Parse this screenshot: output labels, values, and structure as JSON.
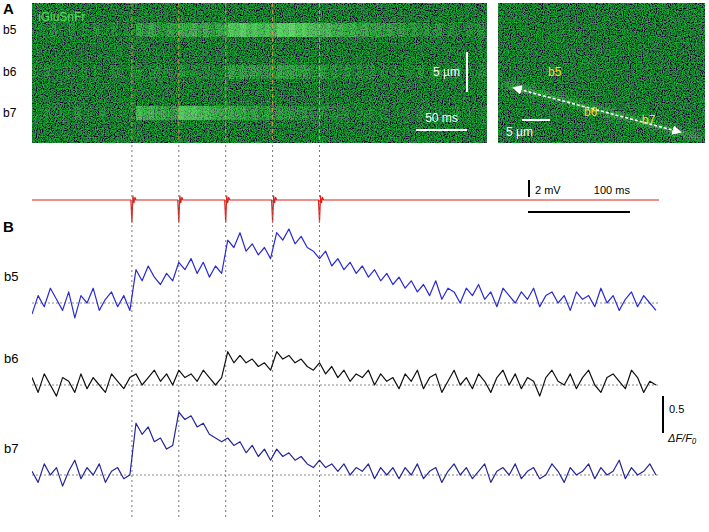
{
  "chart_data": [
    {
      "type": "line",
      "x": [
        0,
        97,
        98,
        99,
        100,
        101,
        102,
        143,
        144,
        145,
        146,
        147,
        148,
        189,
        190,
        191,
        192,
        193,
        194,
        235,
        236,
        237,
        238,
        239,
        240,
        281,
        282,
        283,
        284,
        285,
        286,
        615
      ],
      "series": [
        {
          "color": "#e0201a",
          "values": [
            0,
            0,
            -2.6,
            0.5,
            -0.3,
            0.3,
            0,
            0,
            -2.6,
            0.5,
            -0.3,
            0.3,
            0,
            0,
            -2.6,
            0.5,
            -0.3,
            0.3,
            0,
            0,
            -2.6,
            0.5,
            -0.3,
            0.3,
            0,
            0,
            -2.6,
            0.5,
            -0.3,
            0.3,
            0,
            0
          ]
        }
      ],
      "xlim": [
        0,
        615
      ],
      "ylim": [
        -3,
        1
      ],
      "tick_labels": false,
      "events": [
        98,
        144,
        190,
        236,
        282
      ],
      "scale_bars": [
        {
          "axis": "y",
          "value": 2,
          "label": "2 mV"
        },
        {
          "axis": "x",
          "value": 100,
          "label": "100 ms"
        }
      ]
    },
    {
      "type": "line",
      "x": [
        0,
        6,
        12,
        18,
        24,
        30,
        36,
        42,
        48,
        54,
        60,
        66,
        72,
        78,
        84,
        90,
        96,
        102,
        108,
        114,
        120,
        126,
        132,
        138,
        144,
        150,
        156,
        162,
        168,
        174,
        180,
        186,
        192,
        198,
        204,
        210,
        216,
        222,
        228,
        234,
        240,
        246,
        252,
        258,
        264,
        270,
        276,
        282,
        288,
        294,
        300,
        306,
        312,
        318,
        324,
        330,
        336,
        342,
        348,
        354,
        360,
        366,
        372,
        378,
        384,
        390,
        396,
        402,
        408,
        414,
        420,
        426,
        432,
        438,
        444,
        450,
        456,
        462,
        468,
        474,
        480,
        486,
        492,
        498,
        504,
        510,
        516,
        522,
        528,
        534,
        540,
        546,
        552,
        558,
        564,
        570,
        576,
        582,
        588,
        594,
        600,
        606,
        612
      ],
      "series": [
        {
          "name": "b5",
          "color": "#2b2bd4",
          "values": [
            -0.15,
            0.1,
            -0.05,
            0.2,
            0.05,
            -0.1,
            0.15,
            -0.2,
            0.1,
            0.0,
            0.2,
            -0.1,
            0.05,
            0.15,
            -0.05,
            0.1,
            -0.1,
            0.45,
            0.3,
            0.5,
            0.35,
            0.25,
            0.4,
            0.3,
            0.55,
            0.45,
            0.6,
            0.4,
            0.55,
            0.35,
            0.5,
            0.4,
            0.85,
            0.75,
            0.95,
            0.7,
            0.8,
            0.65,
            0.75,
            0.6,
            0.95,
            0.85,
            1.0,
            0.8,
            0.9,
            0.75,
            0.7,
            0.6,
            0.7,
            0.5,
            0.6,
            0.45,
            0.55,
            0.4,
            0.5,
            0.35,
            0.45,
            0.3,
            0.4,
            0.25,
            0.35,
            0.2,
            0.3,
            0.15,
            0.25,
            0.1,
            0.3,
            0.05,
            0.2,
            0.15,
            0.0,
            0.2,
            0.1,
            0.25,
            0.05,
            0.15,
            -0.05,
            0.2,
            0.1,
            0.0,
            0.15,
            0.05,
            0.2,
            -0.05,
            0.1,
            0.15,
            0.0,
            0.1,
            -0.1,
            0.15,
            0.05,
            0.1,
            -0.05,
            0.2,
            0.0,
            0.1,
            -0.1,
            0.05,
            0.15,
            -0.05,
            0.1,
            0.0,
            -0.1
          ]
        },
        {
          "name": "b6",
          "color": "#111111",
          "values": [
            0.1,
            -0.1,
            0.15,
            0.0,
            -0.15,
            0.1,
            0.05,
            -0.1,
            0.15,
            -0.05,
            0.1,
            0.0,
            -0.1,
            0.15,
            0.05,
            -0.05,
            0.1,
            0.15,
            0.0,
            0.1,
            0.2,
            0.05,
            0.15,
            0.0,
            0.2,
            0.1,
            0.15,
            0.05,
            0.2,
            0.1,
            0.0,
            0.1,
            0.45,
            0.3,
            0.4,
            0.3,
            0.35,
            0.25,
            0.3,
            0.2,
            0.45,
            0.35,
            0.4,
            0.3,
            0.35,
            0.25,
            0.2,
            0.3,
            0.15,
            0.25,
            0.1,
            0.2,
            0.05,
            0.15,
            0.1,
            0.2,
            0.0,
            0.15,
            0.05,
            0.1,
            -0.05,
            0.15,
            0.05,
            0.2,
            -0.05,
            0.1,
            0.15,
            -0.1,
            0.05,
            0.2,
            0.0,
            0.1,
            -0.05,
            0.15,
            0.05,
            -0.1,
            0.1,
            0.2,
            0.0,
            0.15,
            -0.05,
            0.1,
            0.05,
            -0.15,
            0.1,
            0.2,
            0.05,
            0.0,
            0.15,
            -0.05,
            0.1,
            0.2,
            0.0,
            -0.1,
            0.1,
            0.15,
            0.05,
            -0.05,
            0.2,
            0.1,
            -0.1,
            0.05,
            0.0
          ]
        },
        {
          "name": "b7",
          "color": "#262699",
          "values": [
            0.05,
            -0.1,
            0.15,
            0.0,
            0.1,
            -0.15,
            0.05,
            0.2,
            -0.05,
            0.1,
            0.0,
            0.15,
            -0.1,
            0.05,
            0.1,
            -0.05,
            0.0,
            0.7,
            0.55,
            0.65,
            0.45,
            0.5,
            0.35,
            0.4,
            0.85,
            0.75,
            0.8,
            0.65,
            0.7,
            0.55,
            0.5,
            0.45,
            0.5,
            0.4,
            0.45,
            0.3,
            0.4,
            0.25,
            0.35,
            0.2,
            0.35,
            0.25,
            0.3,
            0.2,
            0.25,
            0.15,
            0.1,
            0.2,
            0.1,
            0.15,
            0.05,
            0.15,
            0.0,
            0.1,
            0.05,
            0.15,
            -0.05,
            0.1,
            0.0,
            0.1,
            -0.05,
            0.1,
            0.0,
            0.15,
            -0.05,
            0.05,
            0.1,
            -0.1,
            0.05,
            0.15,
            0.0,
            0.1,
            -0.05,
            0.05,
            0.15,
            -0.1,
            0.05,
            0.1,
            0.0,
            0.15,
            -0.05,
            0.05,
            0.1,
            -0.05,
            0.0,
            0.15,
            0.05,
            -0.1,
            0.1,
            0.0,
            0.05,
            0.15,
            -0.05,
            0.1,
            0.0,
            0.05,
            0.2,
            -0.05,
            0.1,
            0.0,
            0.05,
            0.15,
            0.0
          ]
        }
      ],
      "xlim": [
        0,
        615
      ],
      "ylim": [
        -0.45,
        1.1
      ],
      "tick_labels": false,
      "baseline": 0,
      "scale_bars": [
        {
          "axis": "y",
          "value": 0.5,
          "label": "0.5",
          "unit": "ΔF/F₀"
        }
      ]
    }
  ],
  "figure": {
    "panel_labels": [
      "A",
      "B"
    ],
    "indicator": "iGluSnFr",
    "linescan_scale_bars": [
      {
        "axis": "y",
        "value": 5,
        "label": "5 µm"
      },
      {
        "axis": "x",
        "value": 50,
        "label": "50 ms"
      }
    ],
    "image_scale_bar": {
      "value": 5,
      "label": "5 µm"
    }
  }
}
